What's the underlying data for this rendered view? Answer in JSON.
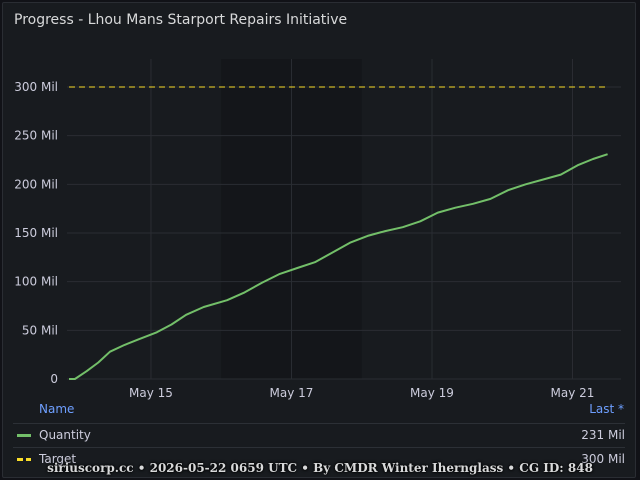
{
  "panel": {
    "title": "Progress - Lhou Mans Starport Repairs Initiative"
  },
  "chart_data": {
    "type": "line",
    "title": "Progress - Lhou Mans Starport Repairs Initiative",
    "y_ticks": [
      "0",
      "50 Mil",
      "100 Mil",
      "150 Mil",
      "200 Mil",
      "250 Mil",
      "300 Mil"
    ],
    "y_tick_values": [
      0,
      50,
      100,
      150,
      200,
      250,
      300
    ],
    "ylim": [
      0,
      330
    ],
    "y_unit": "Mil",
    "x_ticks": [
      "May 15",
      "May 17",
      "May 19",
      "May 21"
    ],
    "x_tick_values": [
      "2026-05-15",
      "2026-05-17",
      "2026-05-19",
      "2026-05-21"
    ],
    "xlim": [
      "2026-05-13T20:00",
      "2026-05-21T07:00"
    ],
    "grid": true,
    "shaded_interval": [
      "2026-05-16",
      "2026-05-18"
    ],
    "series": [
      {
        "name": "Quantity",
        "color": "#73bf69",
        "style": "solid",
        "points": [
          [
            "2026-05-13T20:00",
            0
          ],
          [
            "2026-05-13T22:00",
            0
          ],
          [
            "2026-05-14T02:00",
            8
          ],
          [
            "2026-05-14T06:00",
            17
          ],
          [
            "2026-05-14T10:00",
            28
          ],
          [
            "2026-05-14T15:00",
            35
          ],
          [
            "2026-05-14T20:00",
            41
          ],
          [
            "2026-05-15T02:00",
            48
          ],
          [
            "2026-05-15T07:00",
            56
          ],
          [
            "2026-05-15T12:00",
            66
          ],
          [
            "2026-05-15T18:00",
            74
          ],
          [
            "2026-05-16T02:00",
            81
          ],
          [
            "2026-05-16T08:00",
            89
          ],
          [
            "2026-05-16T14:00",
            99
          ],
          [
            "2026-05-16T20:00",
            108
          ],
          [
            "2026-05-17T02:00",
            114
          ],
          [
            "2026-05-17T08:00",
            120
          ],
          [
            "2026-05-17T14:00",
            130
          ],
          [
            "2026-05-17T20:00",
            140
          ],
          [
            "2026-05-18T02:00",
            147
          ],
          [
            "2026-05-18T08:00",
            152
          ],
          [
            "2026-05-18T14:00",
            156
          ],
          [
            "2026-05-18T20:00",
            162
          ],
          [
            "2026-05-19T02:00",
            171
          ],
          [
            "2026-05-19T08:00",
            176
          ],
          [
            "2026-05-19T14:00",
            180
          ],
          [
            "2026-05-19T20:00",
            185
          ],
          [
            "2026-05-20T02:00",
            194
          ],
          [
            "2026-05-20T08:00",
            200
          ],
          [
            "2026-05-20T14:00",
            205
          ],
          [
            "2026-05-20T20:00",
            210
          ],
          [
            "2026-05-21T02:00",
            220
          ],
          [
            "2026-05-21T07:00",
            226
          ],
          [
            "2026-05-21T12:00",
            231
          ]
        ]
      },
      {
        "name": "Target",
        "color": "#fade2a",
        "style": "dashed",
        "points": [
          [
            "2026-05-13T20:00",
            300
          ],
          [
            "2026-05-21T12:00",
            300
          ]
        ]
      }
    ]
  },
  "legend": {
    "name_header": "Name",
    "last_header": "Last *",
    "rows": [
      {
        "label": "Quantity",
        "value": "231 Mil",
        "color": "#73bf69"
      },
      {
        "label": "Target",
        "value": "300 Mil",
        "color": "#fade2a"
      }
    ]
  },
  "footer": "siriuscorp.cc • 2026-05-22 0659 UTC • By CMDR Winter Ihernglass • CG ID: 848"
}
